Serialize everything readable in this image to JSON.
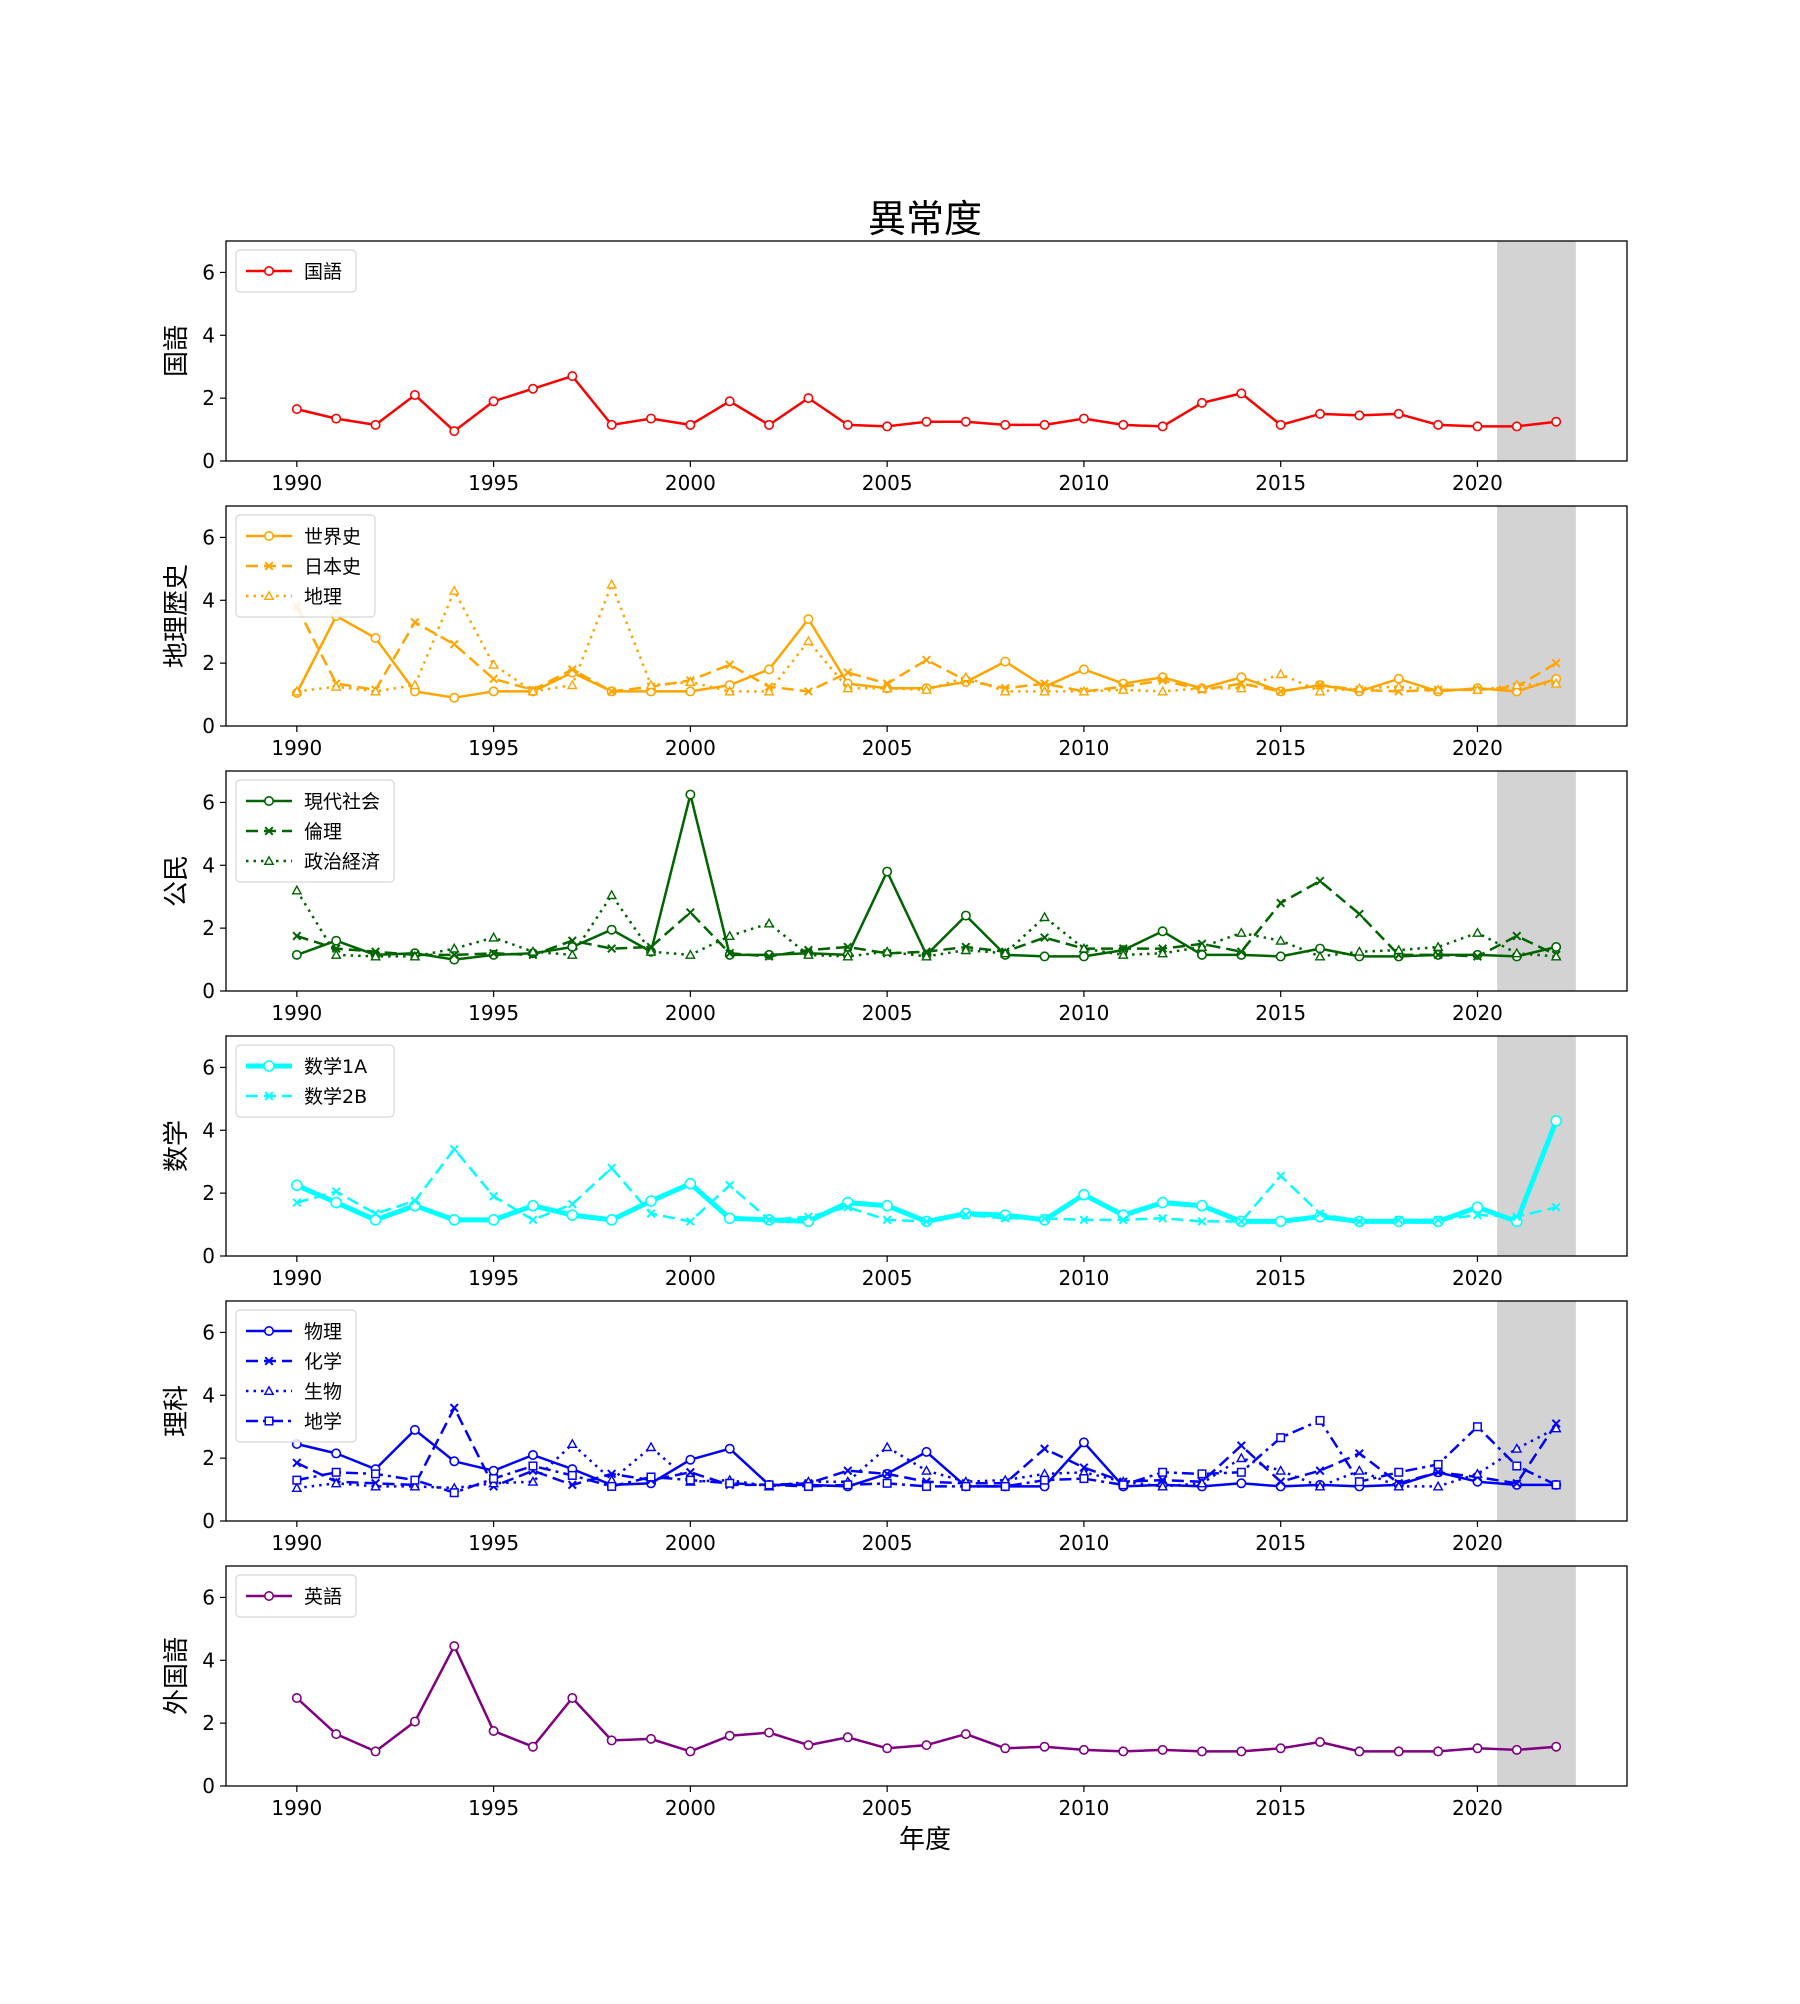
{
  "title": "異常度",
  "xlabel": "年度",
  "chart_data": [
    {
      "type": "line",
      "ylabel": "国語",
      "xlim": [
        1988.2,
        2023.8
      ],
      "ylim": [
        0,
        7
      ],
      "xticks": [
        1990,
        1995,
        2000,
        2005,
        2010,
        2015,
        2020
      ],
      "yticks": [
        0,
        2,
        4,
        6
      ],
      "shaded_x_range": [
        2020.5,
        2022.5
      ],
      "legend_position": "upper-left",
      "x": [
        1990,
        1991,
        1992,
        1993,
        1994,
        1995,
        1996,
        1997,
        1998,
        1999,
        2000,
        2001,
        2002,
        2003,
        2004,
        2005,
        2006,
        2007,
        2008,
        2009,
        2010,
        2011,
        2012,
        2013,
        2014,
        2015,
        2016,
        2017,
        2018,
        2019,
        2020,
        2021,
        2022
      ],
      "series": [
        {
          "name": "国語",
          "color": "#ff0000",
          "line_style": "solid",
          "marker": "circle",
          "line_width": 2.5,
          "values": [
            1.65,
            1.35,
            1.15,
            2.1,
            0.95,
            1.9,
            2.3,
            2.7,
            1.15,
            1.35,
            1.15,
            1.9,
            1.15,
            2.0,
            1.15,
            1.1,
            1.25,
            1.25,
            1.15,
            1.15,
            1.35,
            1.15,
            1.1,
            1.85,
            2.15,
            1.15,
            1.5,
            1.45,
            1.5,
            1.15,
            1.1,
            1.1,
            1.25
          ]
        }
      ]
    },
    {
      "type": "line",
      "ylabel": "地理歴史",
      "xlim": [
        1988.2,
        2023.8
      ],
      "ylim": [
        0,
        7
      ],
      "xticks": [
        1990,
        1995,
        2000,
        2005,
        2010,
        2015,
        2020
      ],
      "yticks": [
        0,
        2,
        4,
        6
      ],
      "shaded_x_range": [
        2020.5,
        2022.5
      ],
      "legend_position": "upper-left",
      "x": [
        1990,
        1991,
        1992,
        1993,
        1994,
        1995,
        1996,
        1997,
        1998,
        1999,
        2000,
        2001,
        2002,
        2003,
        2004,
        2005,
        2006,
        2007,
        2008,
        2009,
        2010,
        2011,
        2012,
        2013,
        2014,
        2015,
        2016,
        2017,
        2018,
        2019,
        2020,
        2021,
        2022
      ],
      "series": [
        {
          "name": "世界史",
          "color": "#ffa500",
          "line_style": "solid",
          "marker": "circle",
          "line_width": 2.5,
          "values": [
            1.05,
            3.5,
            2.8,
            1.1,
            0.9,
            1.1,
            1.1,
            1.7,
            1.1,
            1.1,
            1.1,
            1.3,
            1.8,
            3.4,
            1.35,
            1.2,
            1.2,
            1.4,
            2.05,
            1.25,
            1.8,
            1.35,
            1.55,
            1.2,
            1.55,
            1.1,
            1.3,
            1.1,
            1.5,
            1.1,
            1.2,
            1.1,
            1.5
          ]
        },
        {
          "name": "日本史",
          "color": "#ffa500",
          "line_style": "dashed",
          "marker": "x",
          "line_width": 2.5,
          "values": [
            3.8,
            1.35,
            1.15,
            3.3,
            2.6,
            1.5,
            1.15,
            1.8,
            1.1,
            1.25,
            1.45,
            1.95,
            1.25,
            1.1,
            1.7,
            1.35,
            2.1,
            1.45,
            1.2,
            1.35,
            1.1,
            1.25,
            1.45,
            1.15,
            1.35,
            1.1,
            1.3,
            1.15,
            1.1,
            1.15,
            1.15,
            1.25,
            2.0
          ]
        },
        {
          "name": "地理",
          "color": "#ffa500",
          "line_style": "dotted",
          "marker": "triangle",
          "line_width": 2.5,
          "values": [
            1.1,
            1.25,
            1.1,
            1.3,
            4.3,
            1.95,
            1.1,
            1.3,
            4.5,
            1.3,
            1.4,
            1.1,
            1.1,
            2.7,
            1.2,
            1.2,
            1.15,
            1.55,
            1.1,
            1.1,
            1.1,
            1.15,
            1.1,
            1.2,
            1.2,
            1.65,
            1.1,
            1.2,
            1.25,
            1.15,
            1.15,
            1.3,
            1.35
          ]
        }
      ]
    },
    {
      "type": "line",
      "ylabel": "公民",
      "xlim": [
        1988.2,
        2023.8
      ],
      "ylim": [
        0,
        7
      ],
      "xticks": [
        1990,
        1995,
        2000,
        2005,
        2010,
        2015,
        2020
      ],
      "yticks": [
        0,
        2,
        4,
        6
      ],
      "shaded_x_range": [
        2020.5,
        2022.5
      ],
      "legend_position": "upper-left",
      "x": [
        1990,
        1991,
        1992,
        1993,
        1994,
        1995,
        1996,
        1997,
        1998,
        1999,
        2000,
        2001,
        2002,
        2003,
        2004,
        2005,
        2006,
        2007,
        2008,
        2009,
        2010,
        2011,
        2012,
        2013,
        2014,
        2015,
        2016,
        2017,
        2018,
        2019,
        2020,
        2021,
        2022
      ],
      "series": [
        {
          "name": "現代社会",
          "color": "#006400",
          "line_style": "solid",
          "marker": "circle",
          "line_width": 2.5,
          "values": [
            1.15,
            1.6,
            1.15,
            1.2,
            1.0,
            1.15,
            1.2,
            1.4,
            1.95,
            1.25,
            6.25,
            1.15,
            1.15,
            1.2,
            1.15,
            3.8,
            1.15,
            2.4,
            1.15,
            1.1,
            1.1,
            1.3,
            1.9,
            1.15,
            1.15,
            1.1,
            1.35,
            1.1,
            1.1,
            1.15,
            1.15,
            1.1,
            1.4
          ]
        },
        {
          "name": "倫理",
          "color": "#006400",
          "line_style": "dashed",
          "marker": "x",
          "line_width": 2.5,
          "values": [
            1.75,
            1.35,
            1.25,
            1.15,
            1.15,
            1.2,
            1.15,
            1.6,
            1.35,
            1.4,
            2.5,
            1.2,
            1.1,
            1.3,
            1.4,
            1.2,
            1.25,
            1.4,
            1.25,
            1.7,
            1.35,
            1.35,
            1.35,
            1.5,
            1.25,
            2.8,
            3.5,
            2.45,
            1.15,
            1.15,
            1.1,
            1.75,
            1.15
          ]
        },
        {
          "name": "政治経済",
          "color": "#006400",
          "line_style": "dotted",
          "marker": "triangle",
          "line_width": 2.5,
          "values": [
            3.2,
            1.15,
            1.1,
            1.1,
            1.35,
            1.7,
            1.25,
            1.15,
            3.05,
            1.25,
            1.15,
            1.75,
            2.15,
            1.15,
            1.1,
            1.25,
            1.1,
            1.3,
            1.2,
            2.35,
            1.35,
            1.15,
            1.2,
            1.4,
            1.85,
            1.6,
            1.1,
            1.25,
            1.3,
            1.4,
            1.85,
            1.2,
            1.1
          ]
        }
      ]
    },
    {
      "type": "line",
      "ylabel": "数学",
      "xlim": [
        1988.2,
        2023.8
      ],
      "ylim": [
        0,
        7
      ],
      "xticks": [
        1990,
        1995,
        2000,
        2005,
        2010,
        2015,
        2020
      ],
      "yticks": [
        0,
        2,
        4,
        6
      ],
      "shaded_x_range": [
        2020.5,
        2022.5
      ],
      "legend_position": "upper-left",
      "x": [
        1990,
        1991,
        1992,
        1993,
        1994,
        1995,
        1996,
        1997,
        1998,
        1999,
        2000,
        2001,
        2002,
        2003,
        2004,
        2005,
        2006,
        2007,
        2008,
        2009,
        2010,
        2011,
        2012,
        2013,
        2014,
        2015,
        2016,
        2017,
        2018,
        2019,
        2020,
        2021,
        2022
      ],
      "series": [
        {
          "name": "数学1A",
          "color": "#00ffff",
          "line_style": "solid",
          "marker": "circle",
          "line_width": 5,
          "values": [
            2.25,
            1.7,
            1.15,
            1.6,
            1.15,
            1.15,
            1.6,
            1.3,
            1.15,
            1.75,
            2.3,
            1.2,
            1.15,
            1.1,
            1.7,
            1.6,
            1.1,
            1.35,
            1.3,
            1.15,
            1.95,
            1.3,
            1.7,
            1.6,
            1.1,
            1.1,
            1.25,
            1.1,
            1.1,
            1.1,
            1.55,
            1.1,
            4.3
          ]
        },
        {
          "name": "数学2B",
          "color": "#00ffff",
          "line_style": "dashed",
          "marker": "x",
          "line_width": 2.5,
          "values": [
            1.7,
            2.05,
            1.35,
            1.75,
            3.4,
            1.9,
            1.15,
            1.65,
            2.8,
            1.35,
            1.1,
            2.25,
            1.15,
            1.25,
            1.55,
            1.15,
            1.1,
            1.3,
            1.2,
            1.2,
            1.15,
            1.15,
            1.2,
            1.1,
            1.1,
            2.55,
            1.35,
            1.1,
            1.15,
            1.15,
            1.3,
            1.25,
            1.55
          ]
        }
      ]
    },
    {
      "type": "line",
      "ylabel": "理科",
      "xlim": [
        1988.2,
        2023.8
      ],
      "ylim": [
        0,
        7
      ],
      "xticks": [
        1990,
        1995,
        2000,
        2005,
        2010,
        2015,
        2020
      ],
      "yticks": [
        0,
        2,
        4,
        6
      ],
      "shaded_x_range": [
        2020.5,
        2022.5
      ],
      "legend_position": "upper-left",
      "x": [
        1990,
        1991,
        1992,
        1993,
        1994,
        1995,
        1996,
        1997,
        1998,
        1999,
        2000,
        2001,
        2002,
        2003,
        2004,
        2005,
        2006,
        2007,
        2008,
        2009,
        2010,
        2011,
        2012,
        2013,
        2014,
        2015,
        2016,
        2017,
        2018,
        2019,
        2020,
        2021,
        2022
      ],
      "series": [
        {
          "name": "物理",
          "color": "#0000ff",
          "line_style": "solid",
          "marker": "circle",
          "line_width": 2.5,
          "values": [
            2.45,
            2.15,
            1.65,
            2.9,
            1.9,
            1.6,
            2.1,
            1.65,
            1.15,
            1.2,
            1.95,
            2.3,
            1.15,
            1.15,
            1.1,
            1.5,
            2.2,
            1.1,
            1.1,
            1.1,
            2.5,
            1.1,
            1.15,
            1.1,
            1.2,
            1.1,
            1.15,
            1.1,
            1.15,
            1.55,
            1.25,
            1.15,
            1.15
          ]
        },
        {
          "name": "化学",
          "color": "#0000ff",
          "line_style": "dashed",
          "marker": "x",
          "line_width": 2.5,
          "values": [
            1.85,
            1.25,
            1.2,
            1.15,
            3.6,
            1.1,
            1.6,
            1.15,
            1.5,
            1.3,
            1.55,
            1.15,
            1.15,
            1.2,
            1.6,
            1.5,
            1.25,
            1.2,
            1.2,
            2.3,
            1.7,
            1.25,
            1.3,
            1.25,
            2.4,
            1.25,
            1.6,
            2.15,
            1.2,
            1.55,
            1.4,
            1.2,
            3.1
          ]
        },
        {
          "name": "生物",
          "color": "#0000ff",
          "line_style": "dotted",
          "marker": "triangle",
          "line_width": 2.5,
          "values": [
            1.05,
            1.2,
            1.1,
            1.1,
            1.05,
            1.2,
            1.25,
            2.45,
            1.3,
            2.35,
            1.25,
            1.3,
            1.1,
            1.25,
            1.25,
            2.35,
            1.6,
            1.25,
            1.3,
            1.5,
            1.55,
            1.25,
            1.1,
            1.2,
            2.0,
            1.6,
            1.1,
            1.6,
            1.1,
            1.1,
            1.5,
            2.3,
            2.95
          ]
        },
        {
          "name": "地学",
          "color": "#0000ff",
          "line_style": "dashdot",
          "marker": "square",
          "line_width": 2.5,
          "values": [
            1.3,
            1.55,
            1.5,
            1.3,
            0.9,
            1.35,
            1.75,
            1.45,
            1.1,
            1.4,
            1.3,
            1.2,
            1.15,
            1.1,
            1.15,
            1.2,
            1.1,
            1.1,
            1.1,
            1.3,
            1.35,
            1.15,
            1.55,
            1.5,
            1.55,
            2.65,
            3.2,
            1.25,
            1.55,
            1.8,
            3.0,
            1.75,
            1.15
          ]
        }
      ]
    },
    {
      "type": "line",
      "ylabel": "外国語",
      "xlim": [
        1988.2,
        2023.8
      ],
      "ylim": [
        0,
        7
      ],
      "xticks": [
        1990,
        1995,
        2000,
        2005,
        2010,
        2015,
        2020
      ],
      "yticks": [
        0,
        2,
        4,
        6
      ],
      "shaded_x_range": [
        2020.5,
        2022.5
      ],
      "legend_position": "upper-left",
      "x": [
        1990,
        1991,
        1992,
        1993,
        1994,
        1995,
        1996,
        1997,
        1998,
        1999,
        2000,
        2001,
        2002,
        2003,
        2004,
        2005,
        2006,
        2007,
        2008,
        2009,
        2010,
        2011,
        2012,
        2013,
        2014,
        2015,
        2016,
        2017,
        2018,
        2019,
        2020,
        2021,
        2022
      ],
      "series": [
        {
          "name": "英語",
          "color": "#800080",
          "line_style": "solid",
          "marker": "circle",
          "line_width": 2.5,
          "values": [
            2.8,
            1.65,
            1.1,
            2.05,
            4.45,
            1.75,
            1.25,
            2.8,
            1.45,
            1.5,
            1.1,
            1.6,
            1.7,
            1.3,
            1.55,
            1.2,
            1.3,
            1.65,
            1.2,
            1.25,
            1.15,
            1.1,
            1.15,
            1.1,
            1.1,
            1.2,
            1.4,
            1.1,
            1.1,
            1.1,
            1.2,
            1.15,
            1.25
          ]
        }
      ]
    }
  ]
}
